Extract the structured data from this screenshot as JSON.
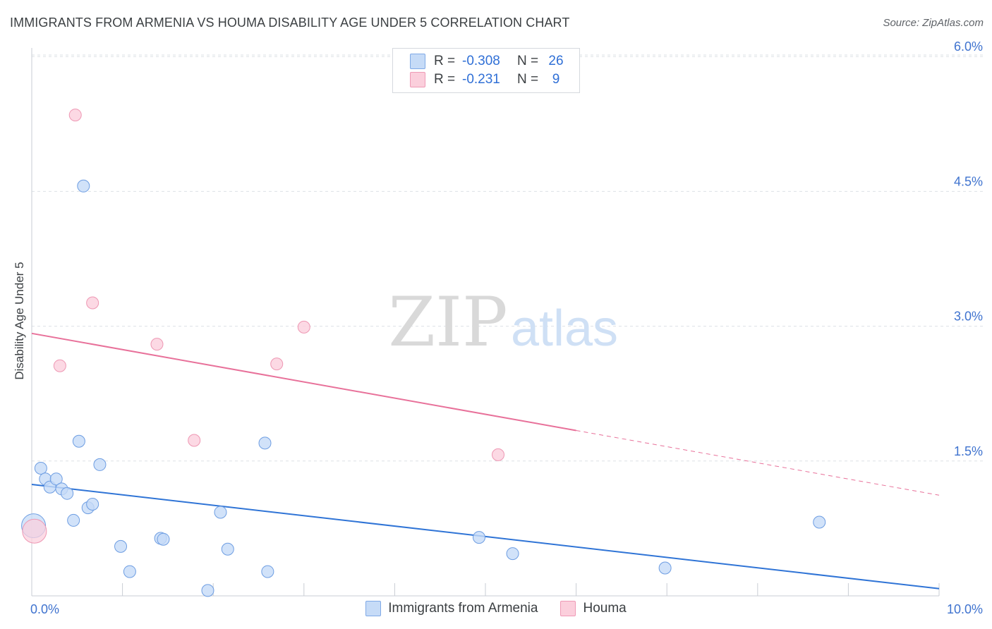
{
  "title": "IMMIGRANTS FROM ARMENIA VS HOUMA DISABILITY AGE UNDER 5 CORRELATION CHART",
  "source": "Source: ZipAtlas.com",
  "watermark": {
    "zip": "ZIP",
    "atlas": "atlas"
  },
  "stats": {
    "series1": {
      "r_label": "R =",
      "r_value": "-0.308",
      "n_label": "N =",
      "n_value": "26"
    },
    "series2": {
      "r_label": "R =",
      "r_value": "-0.231",
      "n_label": "N =",
      "n_value": "9"
    }
  },
  "legend": {
    "series1": "Immigrants from Armenia",
    "series2": "Houma"
  },
  "colors": {
    "blue_fill": "#c6dbf7",
    "blue_stroke": "#6d9de2",
    "blue_line": "#2f74d6",
    "pink_fill": "#fbd0dd",
    "pink_stroke": "#ee97b3",
    "pink_line": "#e8719a",
    "grid": "#dde1e6",
    "tick_text": "#3f73cf"
  },
  "chart_data": {
    "type": "scatter",
    "xlabel": "",
    "ylabel": "Disability Age Under 5",
    "xlim": [
      0,
      10
    ],
    "ylim": [
      0,
      6.3
    ],
    "x_tick_labels": [
      {
        "value": 0,
        "label": "0.0%"
      },
      {
        "value": 10,
        "label": "10.0%"
      }
    ],
    "y_tick_labels": [
      {
        "value": 1.5,
        "label": "1.5%"
      },
      {
        "value": 3.0,
        "label": "3.0%"
      },
      {
        "value": 4.5,
        "label": "4.5%"
      },
      {
        "value": 6.0,
        "label": "6.0%"
      }
    ],
    "x_minor_ticks": [
      1,
      2,
      3,
      4,
      5,
      6,
      7,
      8,
      9
    ],
    "series": [
      {
        "name": "Immigrants from Armenia",
        "color": "blue",
        "points": [
          {
            "x": 0.02,
            "y": 0.78,
            "big": true
          },
          {
            "x": 0.1,
            "y": 1.42
          },
          {
            "x": 0.15,
            "y": 1.3
          },
          {
            "x": 0.2,
            "y": 1.21
          },
          {
            "x": 0.27,
            "y": 1.3
          },
          {
            "x": 0.33,
            "y": 1.19
          },
          {
            "x": 0.39,
            "y": 1.14
          },
          {
            "x": 0.46,
            "y": 0.84
          },
          {
            "x": 0.52,
            "y": 1.72
          },
          {
            "x": 0.57,
            "y": 4.56
          },
          {
            "x": 0.62,
            "y": 0.98
          },
          {
            "x": 0.67,
            "y": 1.02
          },
          {
            "x": 0.75,
            "y": 1.46
          },
          {
            "x": 0.98,
            "y": 0.55
          },
          {
            "x": 1.08,
            "y": 0.27
          },
          {
            "x": 1.42,
            "y": 0.64
          },
          {
            "x": 1.45,
            "y": 0.63
          },
          {
            "x": 1.94,
            "y": 0.06
          },
          {
            "x": 2.08,
            "y": 0.93
          },
          {
            "x": 2.16,
            "y": 0.52
          },
          {
            "x": 2.57,
            "y": 1.7
          },
          {
            "x": 2.6,
            "y": 0.27
          },
          {
            "x": 4.93,
            "y": 0.65
          },
          {
            "x": 5.3,
            "y": 0.47
          },
          {
            "x": 6.98,
            "y": 0.31
          },
          {
            "x": 8.68,
            "y": 0.82
          }
        ],
        "trend": {
          "x0": 0,
          "y0": 1.24,
          "x1": 10,
          "y1": 0.08,
          "solid_until": 10
        }
      },
      {
        "name": "Houma",
        "color": "pink",
        "points": [
          {
            "x": 0.03,
            "y": 0.72,
            "big": true
          },
          {
            "x": 0.31,
            "y": 2.56
          },
          {
            "x": 0.48,
            "y": 5.35
          },
          {
            "x": 0.67,
            "y": 3.26
          },
          {
            "x": 1.38,
            "y": 2.8
          },
          {
            "x": 1.79,
            "y": 1.73
          },
          {
            "x": 2.7,
            "y": 2.58
          },
          {
            "x": 3.0,
            "y": 2.99
          },
          {
            "x": 5.14,
            "y": 1.57
          }
        ],
        "trend": {
          "x0": 0,
          "y0": 2.92,
          "x1": 10,
          "y1": 1.12,
          "solid_until": 6.0
        }
      }
    ]
  }
}
